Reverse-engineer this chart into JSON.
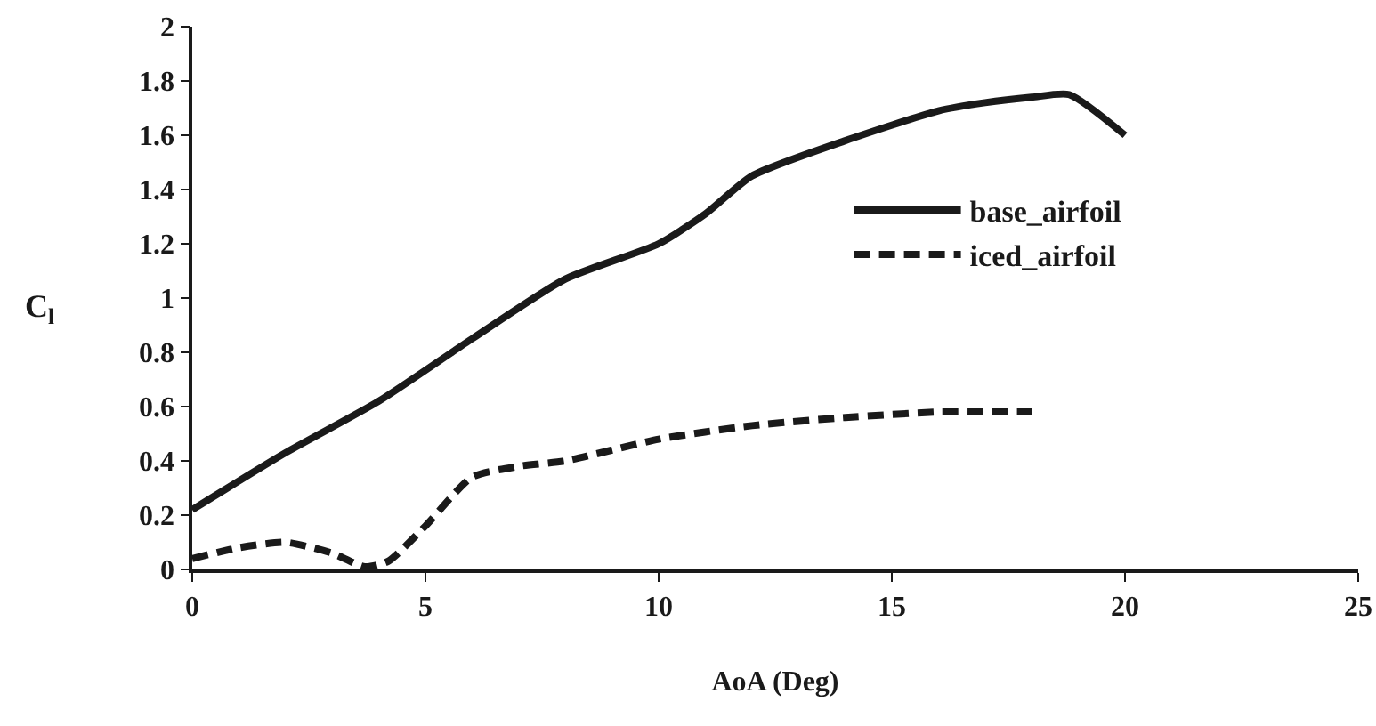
{
  "chart_data": {
    "type": "line",
    "xlabel": "AoA (Deg)",
    "ylabel": "C$_{l}$",
    "xlim": [
      0,
      25
    ],
    "xticks": [
      0,
      5,
      10,
      15,
      20,
      25
    ],
    "ylim": [
      0,
      2
    ],
    "yticks": [
      0,
      {
        "value": 0.2,
        "label": "0.2"
      },
      {
        "value": 0.4,
        "label": "0.4"
      },
      {
        "value": 0.6,
        "label": "0.6"
      },
      {
        "value": 0.8,
        "label": "0.8"
      },
      1,
      {
        "value": 1.2,
        "label": "1.2"
      },
      {
        "value": 1.4,
        "label": "1.4"
      },
      {
        "value": 1.6,
        "label": "1.6"
      },
      {
        "value": 1.8,
        "label": "1.8"
      },
      2
    ],
    "grid": false,
    "legend": "right",
    "series": [
      {
        "name": "base_airfoil",
        "color": "#1a1a1a",
        "line_style": "solid",
        "x": [
          0,
          2,
          4,
          6,
          8,
          10,
          11,
          12,
          14,
          16,
          17,
          18,
          18.8,
          20
        ],
        "values": [
          0.22,
          0.43,
          0.62,
          0.85,
          1.07,
          1.2,
          1.31,
          1.45,
          1.58,
          1.69,
          1.72,
          1.74,
          1.75,
          1.6
        ]
      },
      {
        "name": "iced_airfoil",
        "color": "#1a1a1a",
        "line_style": "dashed",
        "x": [
          0,
          1,
          2,
          3,
          3.7,
          4.2,
          5,
          6,
          7,
          8,
          10,
          12,
          14,
          16,
          17,
          18
        ],
        "values": [
          0.04,
          0.08,
          0.1,
          0.06,
          0.01,
          0.03,
          0.16,
          0.34,
          0.38,
          0.4,
          0.48,
          0.53,
          0.56,
          0.58,
          0.58,
          0.58
        ]
      }
    ]
  }
}
